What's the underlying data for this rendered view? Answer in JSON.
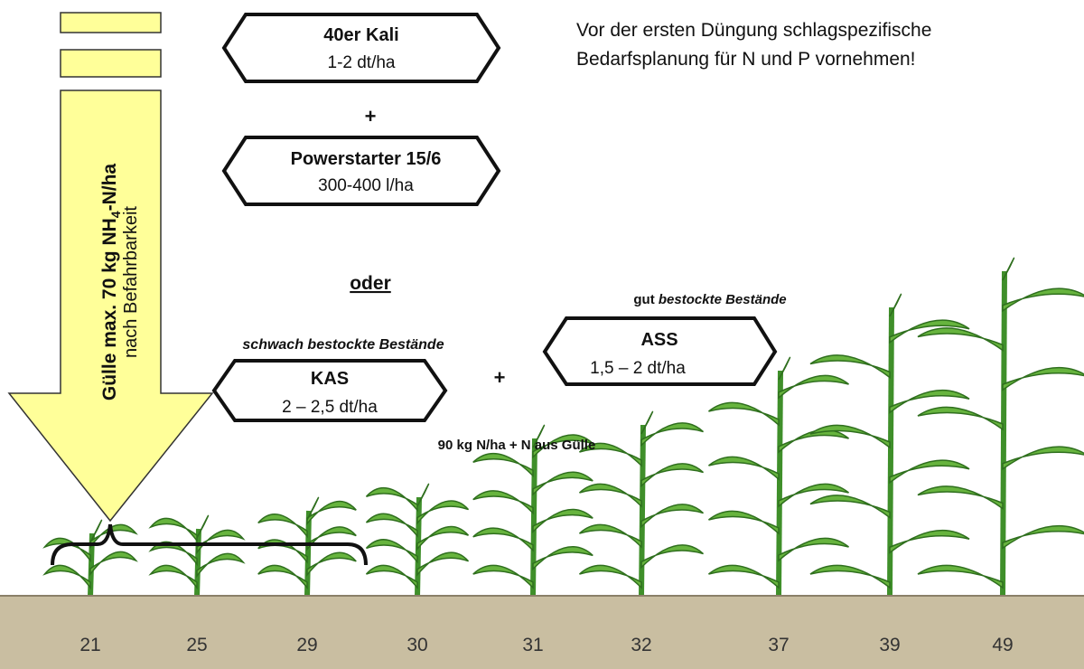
{
  "note": {
    "lines": [
      "Vor der ersten Düngung schlagspezifische",
      "Bedarfsplanung für N und P vornehmen!"
    ]
  },
  "arrow": {
    "main": [
      "Gülle max. 70 kg NH",
      "4",
      "-N/ha"
    ],
    "sub": "nach Befahrbarkeit"
  },
  "boxes": [
    {
      "title": "40er Kali",
      "rate": "1-2 dt/ha"
    },
    {
      "title": "Powerstarter 15/6",
      "rate": "300-400 l/ha"
    },
    {
      "title": "KAS",
      "rate": "2 – 2,5 dt/ha"
    },
    {
      "title": "ASS",
      "rate": "1,5 – 2 dt/ha"
    }
  ],
  "plus": "+",
  "or": "oder",
  "weak_label": "schwach bestockte Bestände",
  "good_label": [
    "gut",
    "bestockte Bestände"
  ],
  "total": "90 kg N/ha + N aus Gülle",
  "stages": [
    21,
    25,
    29,
    30,
    31,
    32,
    37,
    39,
    49
  ]
}
